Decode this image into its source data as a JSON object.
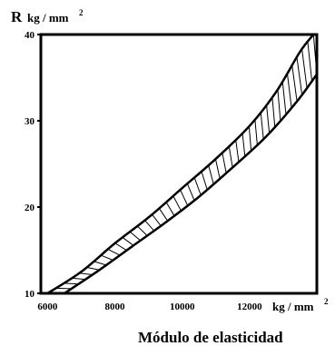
{
  "chart_data": {
    "type": "area",
    "ylabel_main": "R",
    "ylabel_unit": "kg / mm",
    "ylabel_sup": "2",
    "xlabel_unit": "kg / mm",
    "xlabel_sup": "2",
    "xtitle": "Módulo de elasticidad",
    "xlim": [
      5800,
      14000
    ],
    "ylim": [
      10,
      40
    ],
    "xticks": [
      6000,
      8000,
      10000,
      12000
    ],
    "yticks": [
      10,
      20,
      30,
      40
    ],
    "grid": false,
    "legend": "none",
    "series": [
      {
        "values_upper": [
          [
            6000,
            10
          ],
          [
            7000,
            12.5
          ],
          [
            8000,
            15.8
          ],
          [
            9000,
            18.8
          ],
          [
            10000,
            22.2
          ],
          [
            11000,
            25.6
          ],
          [
            12000,
            29.4
          ],
          [
            12800,
            33.4
          ],
          [
            13500,
            38
          ],
          [
            13900,
            40
          ]
        ],
        "values_lower": [
          [
            6500,
            10
          ],
          [
            7500,
            12.6
          ],
          [
            8500,
            15.4
          ],
          [
            9500,
            18.2
          ],
          [
            10500,
            21.2
          ],
          [
            11500,
            24.6
          ],
          [
            12500,
            28.2
          ],
          [
            13400,
            32.2
          ],
          [
            14000,
            35.4
          ]
        ]
      }
    ]
  }
}
